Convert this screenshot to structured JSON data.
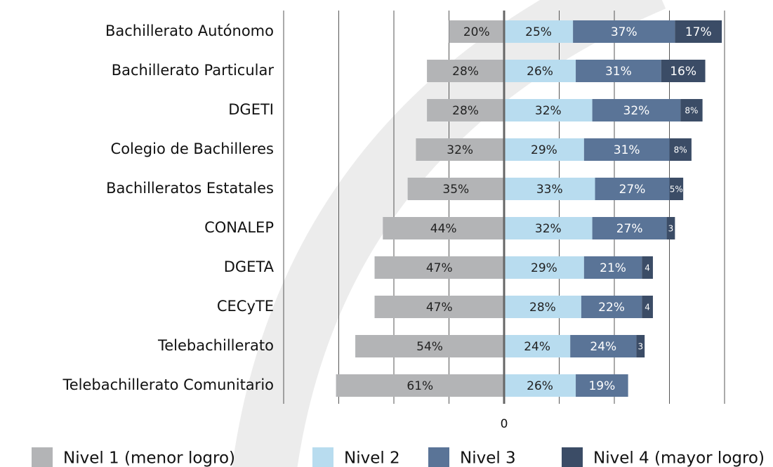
{
  "chart_data": {
    "type": "diverging_bar",
    "categories": [
      "Bachillerato Autónomo",
      "Bachillerato Particular",
      "DGETI",
      "Colegio de Bachilleres",
      "Bachilleratos Estatales",
      "CONALEP",
      "DGETA",
      "CECyTE",
      "Telebachillerato",
      "Telebachillerato Comunitario"
    ],
    "series": [
      {
        "name": "Nivel 1 (menor logro)",
        "color": "#b3b4b6",
        "values": [
          20,
          28,
          28,
          32,
          35,
          44,
          47,
          47,
          54,
          61
        ],
        "value_labels": [
          "20%",
          "28%",
          "28%",
          "32%",
          "35%",
          "44%",
          "47%",
          "47%",
          "54%",
          "61%"
        ]
      },
      {
        "name": "Nivel 2",
        "color": "#b8dcef",
        "values": [
          25,
          26,
          32,
          29,
          33,
          32,
          29,
          28,
          24,
          26
        ],
        "value_labels": [
          "25%",
          "26%",
          "32%",
          "29%",
          "33%",
          "32%",
          "29%",
          "28%",
          "24%",
          "26%"
        ]
      },
      {
        "name": "Nivel 3",
        "color": "#5a7497",
        "values": [
          37,
          31,
          32,
          31,
          27,
          27,
          21,
          22,
          24,
          19
        ],
        "value_labels": [
          "37%",
          "31%",
          "32%",
          "31%",
          "27%",
          "27%",
          "21%",
          "22%",
          "24%",
          "19%"
        ]
      },
      {
        "name": "Nivel 4 (mayor logro)",
        "color": "#3b4c66",
        "values": [
          17,
          16,
          8,
          8,
          5,
          3,
          4,
          4,
          3,
          null
        ],
        "value_labels": [
          "17%",
          "16%",
          "8%",
          "8%",
          "5%",
          "3",
          "4",
          "4",
          "3",
          null
        ]
      }
    ],
    "xlim": [
      -80,
      80
    ],
    "xticks": [
      0
    ],
    "grid": true
  }
}
